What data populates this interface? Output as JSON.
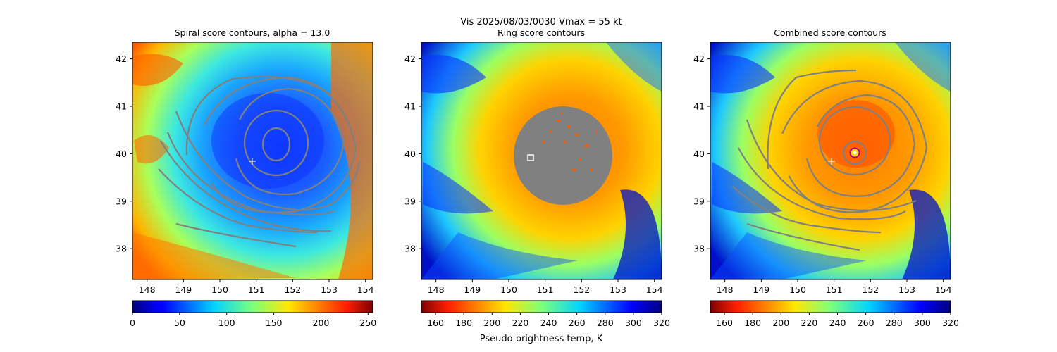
{
  "figure_title": "Vis  2025/08/03/0030    Vmax = 55 kt",
  "colorbar_label": "Pseudo brightness temp, K",
  "chart_data": [
    {
      "type": "heatmap",
      "title": "Spiral score contours, alpha = 13.0",
      "xlim": [
        147.6,
        154.2
      ],
      "ylim": [
        37.35,
        42.35
      ],
      "xticks": [
        "148",
        "149",
        "150",
        "151",
        "152",
        "153",
        "154"
      ],
      "yticks": [
        "38",
        "39",
        "40",
        "41",
        "42"
      ],
      "colormap": "jet",
      "colorbar_ticks": [
        "0",
        "50",
        "100",
        "150",
        "200",
        "250"
      ],
      "colorbar_range": [
        0,
        255
      ],
      "center_marker": [
        150.9,
        39.85
      ],
      "contour_color": "#808080",
      "storm_center": [
        151.55,
        40.05
      ]
    },
    {
      "type": "heatmap",
      "title": "Ring score contours",
      "xlim": [
        147.6,
        154.2
      ],
      "ylim": [
        37.35,
        42.35
      ],
      "xticks": [
        "148",
        "149",
        "150",
        "151",
        "152",
        "153",
        "154"
      ],
      "yticks": [
        "38",
        "39",
        "40",
        "41",
        "42"
      ],
      "colormap": "jet_r",
      "colorbar_ticks": [
        "160",
        "180",
        "200",
        "220",
        "240",
        "260",
        "280",
        "300",
        "320"
      ],
      "colorbar_range": [
        150,
        320
      ],
      "masked_disk_center": [
        151.55,
        40.05
      ],
      "masked_disk_radius_deg": 1.3,
      "square_marker": [
        150.6,
        39.92
      ],
      "storm_center": [
        151.55,
        40.05
      ]
    },
    {
      "type": "heatmap",
      "title": "Combined score contours",
      "xlim": [
        147.6,
        154.2
      ],
      "ylim": [
        37.35,
        42.35
      ],
      "xticks": [
        "148",
        "149",
        "150",
        "151",
        "152",
        "153",
        "154"
      ],
      "yticks": [
        "38",
        "39",
        "40",
        "41",
        "42"
      ],
      "colormap": "jet_r",
      "colorbar_ticks": [
        "160",
        "180",
        "200",
        "220",
        "240",
        "260",
        "280",
        "300",
        "320"
      ],
      "colorbar_range": [
        150,
        320
      ],
      "center_marker": [
        150.9,
        39.85
      ],
      "ring_marker": [
        151.55,
        40.05
      ],
      "storm_center": [
        151.55,
        40.05
      ]
    }
  ]
}
